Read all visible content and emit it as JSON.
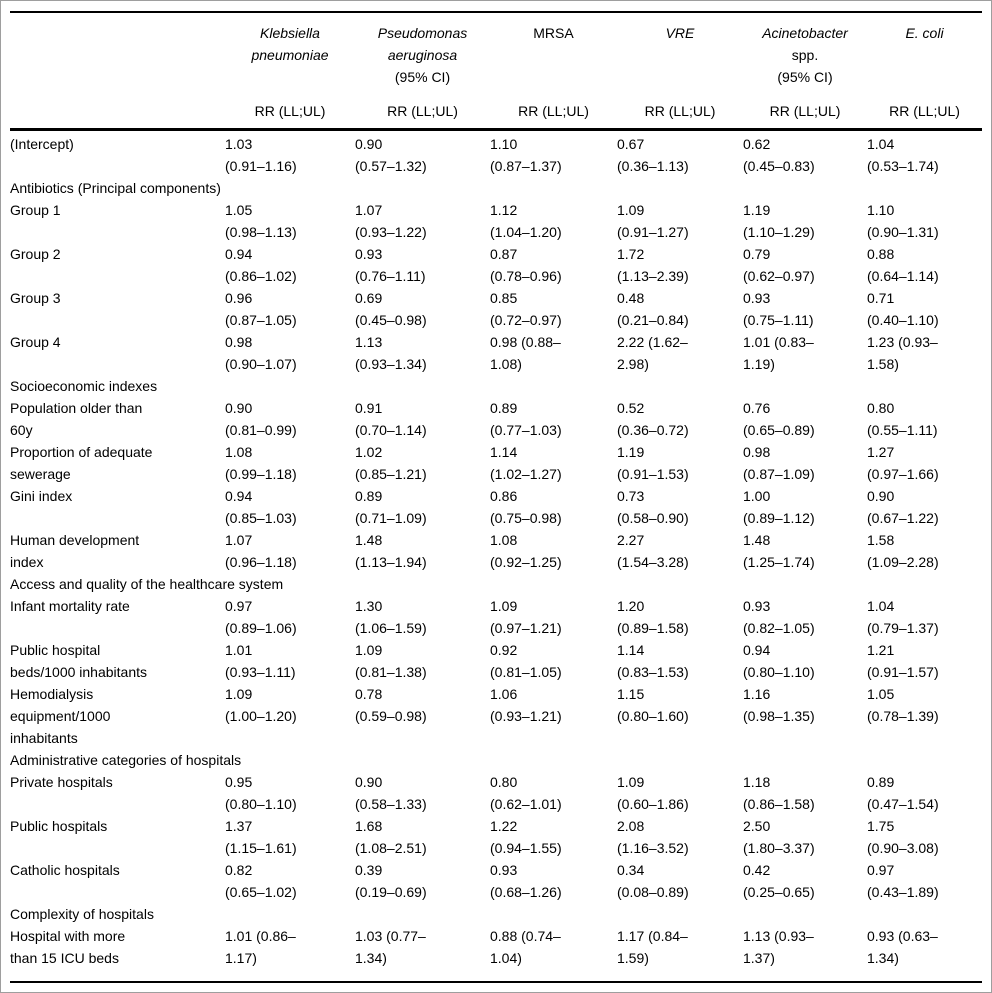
{
  "table": {
    "rr_label": "RR (LL;UL)",
    "ci_label": "(95% CI)",
    "columns": [
      {
        "id": "klebsiella-pneumoniae",
        "name_lines": [
          [
            {
              "t": "Klebsiella",
              "i": true
            }
          ],
          [
            {
              "t": "pneumoniae",
              "i": true
            }
          ]
        ],
        "ci": ""
      },
      {
        "id": "pseudomonas-aeruginosa",
        "name_lines": [
          [
            {
              "t": "Pseudomonas",
              "i": true
            }
          ],
          [
            {
              "t": "aeruginosa",
              "i": true
            }
          ]
        ],
        "ci": "(95% CI)"
      },
      {
        "id": "mrsa",
        "name_lines": [
          [
            {
              "t": "MRSA",
              "i": false
            }
          ]
        ],
        "ci": ""
      },
      {
        "id": "vre",
        "name_lines": [
          [
            {
              "t": "VRE",
              "i": true
            }
          ]
        ],
        "ci": ""
      },
      {
        "id": "acinetobacter-spp",
        "name_lines": [
          [
            {
              "t": "Acinetobacter",
              "i": true
            }
          ],
          [
            {
              "t": "spp.",
              "i": false
            }
          ]
        ],
        "ci": "(95% CI)"
      },
      {
        "id": "e-coli",
        "name_lines": [
          [
            {
              "t": "E. coli",
              "i": true
            }
          ]
        ],
        "ci": ""
      }
    ],
    "rows": [
      {
        "type": "data",
        "label": [
          "(Intercept)"
        ],
        "cells": [
          [
            "1.03",
            "(0.91–1.16)"
          ],
          [
            "0.90",
            "(0.57–1.32)"
          ],
          [
            "1.10",
            "(0.87–1.37)"
          ],
          [
            "0.67",
            "(0.36–1.13)"
          ],
          [
            "0.62",
            "(0.45–0.83)"
          ],
          [
            "1.04",
            "(0.53–1.74)"
          ]
        ]
      },
      {
        "type": "section",
        "label": "Antibiotics (Principal components)"
      },
      {
        "type": "data",
        "label": [
          "Group 1"
        ],
        "cells": [
          [
            "1.05",
            "(0.98–1.13)"
          ],
          [
            "1.07",
            "(0.93–1.22)"
          ],
          [
            "1.12",
            "(1.04–1.20)"
          ],
          [
            "1.09",
            "(0.91–1.27)"
          ],
          [
            "1.19",
            "(1.10–1.29)"
          ],
          [
            "1.10",
            "(0.90–1.31)"
          ]
        ]
      },
      {
        "type": "data",
        "label": [
          "Group 2"
        ],
        "cells": [
          [
            "0.94",
            "(0.86–1.02)"
          ],
          [
            "0.93",
            "(0.76–1.11)"
          ],
          [
            "0.87",
            "(0.78–0.96)"
          ],
          [
            "1.72",
            "(1.13–2.39)"
          ],
          [
            "0.79",
            "(0.62–0.97)"
          ],
          [
            "0.88",
            "(0.64–1.14)"
          ]
        ]
      },
      {
        "type": "data",
        "label": [
          "Group 3"
        ],
        "cells": [
          [
            "0.96",
            "(0.87–1.05)"
          ],
          [
            "0.69",
            "(0.45–0.98)"
          ],
          [
            "0.85",
            "(0.72–0.97)"
          ],
          [
            "0.48",
            "(0.21–0.84)"
          ],
          [
            "0.93",
            "(0.75–1.11)"
          ],
          [
            "0.71",
            "(0.40–1.10)"
          ]
        ]
      },
      {
        "type": "data",
        "label": [
          "Group 4"
        ],
        "cells": [
          [
            "0.98",
            "(0.90–1.07)"
          ],
          [
            "1.13",
            "(0.93–1.34)"
          ],
          [
            "0.98 (0.88–",
            "1.08)"
          ],
          [
            "2.22 (1.62–",
            "2.98)"
          ],
          [
            "1.01 (0.83–",
            "1.19)"
          ],
          [
            "1.23 (0.93–",
            "1.58)"
          ]
        ]
      },
      {
        "type": "section",
        "label": "Socioeconomic indexes"
      },
      {
        "type": "data",
        "label": [
          "Population older than",
          "60y"
        ],
        "cells": [
          [
            "0.90",
            "(0.81–0.99)"
          ],
          [
            "0.91",
            "(0.70–1.14)"
          ],
          [
            "0.89",
            "(0.77–1.03)"
          ],
          [
            "0.52",
            "(0.36–0.72)"
          ],
          [
            "0.76",
            "(0.65–0.89)"
          ],
          [
            "0.80",
            "(0.55–1.11)"
          ]
        ]
      },
      {
        "type": "data",
        "label": [
          "Proportion of adequate",
          "sewerage"
        ],
        "cells": [
          [
            "1.08",
            "(0.99–1.18)"
          ],
          [
            "1.02",
            "(0.85–1.21)"
          ],
          [
            "1.14",
            "(1.02–1.27)"
          ],
          [
            "1.19",
            "(0.91–1.53)"
          ],
          [
            "0.98",
            "(0.87–1.09)"
          ],
          [
            "1.27",
            "(0.97–1.66)"
          ]
        ]
      },
      {
        "type": "data",
        "label": [
          "Gini index"
        ],
        "cells": [
          [
            "0.94",
            "(0.85–1.03)"
          ],
          [
            "0.89",
            "(0.71–1.09)"
          ],
          [
            "0.86",
            "(0.75–0.98)"
          ],
          [
            "0.73",
            "(0.58–0.90)"
          ],
          [
            "1.00",
            "(0.89–1.12)"
          ],
          [
            "0.90",
            "(0.67–1.22)"
          ]
        ]
      },
      {
        "type": "data",
        "label": [
          "Human development",
          "index"
        ],
        "cells": [
          [
            "1.07",
            "(0.96–1.18)"
          ],
          [
            "1.48",
            "(1.13–1.94)"
          ],
          [
            "1.08",
            "(0.92–1.25)"
          ],
          [
            "2.27",
            "(1.54–3.28)"
          ],
          [
            "1.48",
            "(1.25–1.74)"
          ],
          [
            "1.58",
            "(1.09–2.28)"
          ]
        ]
      },
      {
        "type": "section",
        "label": "Access and quality of the healthcare system"
      },
      {
        "type": "data",
        "label": [
          "Infant mortality rate"
        ],
        "cells": [
          [
            "0.97",
            "(0.89–1.06)"
          ],
          [
            "1.30",
            "(1.06–1.59)"
          ],
          [
            "1.09",
            "(0.97–1.21)"
          ],
          [
            "1.20",
            "(0.89–1.58)"
          ],
          [
            "0.93",
            "(0.82–1.05)"
          ],
          [
            "1.04",
            "(0.79–1.37)"
          ]
        ]
      },
      {
        "type": "data",
        "label": [
          "Public hospital",
          "beds/1000 inhabitants"
        ],
        "cells": [
          [
            "1.01",
            "(0.93–1.11)"
          ],
          [
            "1.09",
            "(0.81–1.38)"
          ],
          [
            "0.92",
            "(0.81–1.05)"
          ],
          [
            "1.14",
            "(0.83–1.53)"
          ],
          [
            "0.94",
            "(0.80–1.10)"
          ],
          [
            "1.21",
            "(0.91–1.57)"
          ]
        ]
      },
      {
        "type": "data",
        "label": [
          "Hemodialysis",
          "equipment/1000",
          "inhabitants"
        ],
        "cells": [
          [
            "1.09",
            "(1.00–1.20)"
          ],
          [
            "0.78",
            "(0.59–0.98)"
          ],
          [
            "1.06",
            "(0.93–1.21)"
          ],
          [
            "1.15",
            "(0.80–1.60)"
          ],
          [
            "1.16",
            "(0.98–1.35)"
          ],
          [
            "1.05",
            "(0.78–1.39)"
          ]
        ]
      },
      {
        "type": "section",
        "label": "Administrative categories of hospitals"
      },
      {
        "type": "data",
        "label": [
          "Private hospitals"
        ],
        "cells": [
          [
            "0.95",
            "(0.80–1.10)"
          ],
          [
            "0.90",
            "(0.58–1.33)"
          ],
          [
            "0.80",
            "(0.62–1.01)"
          ],
          [
            "1.09",
            "(0.60–1.86)"
          ],
          [
            "1.18",
            "(0.86–1.58)"
          ],
          [
            "0.89",
            "(0.47–1.54)"
          ]
        ]
      },
      {
        "type": "data",
        "label": [
          "Public hospitals"
        ],
        "cells": [
          [
            "1.37",
            "(1.15–1.61)"
          ],
          [
            "1.68",
            "(1.08–2.51)"
          ],
          [
            "1.22",
            "(0.94–1.55)"
          ],
          [
            "2.08",
            "(1.16–3.52)"
          ],
          [
            "2.50",
            "(1.80–3.37)"
          ],
          [
            "1.75",
            "(0.90–3.08)"
          ]
        ]
      },
      {
        "type": "data",
        "label": [
          "Catholic hospitals"
        ],
        "cells": [
          [
            "0.82",
            "(0.65–1.02)"
          ],
          [
            "0.39",
            "(0.19–0.69)"
          ],
          [
            "0.93",
            "(0.68–1.26)"
          ],
          [
            "0.34",
            "(0.08–0.89)"
          ],
          [
            "0.42",
            "(0.25–0.65)"
          ],
          [
            "0.97",
            "(0.43–1.89)"
          ]
        ]
      },
      {
        "type": "section",
        "label": "Complexity of hospitals"
      },
      {
        "type": "data",
        "label": [
          "Hospital with more",
          "than 15 ICU beds"
        ],
        "cells": [
          [
            "1.01 (0.86–",
            "1.17)"
          ],
          [
            "1.03 (0.77–",
            "1.34)"
          ],
          [
            "0.88 (0.74–",
            "1.04)"
          ],
          [
            "1.17 (0.84–",
            "1.59)"
          ],
          [
            "1.13 (0.93–",
            "1.37)"
          ],
          [
            "0.93 (0.63–",
            "1.34)"
          ]
        ]
      }
    ]
  }
}
